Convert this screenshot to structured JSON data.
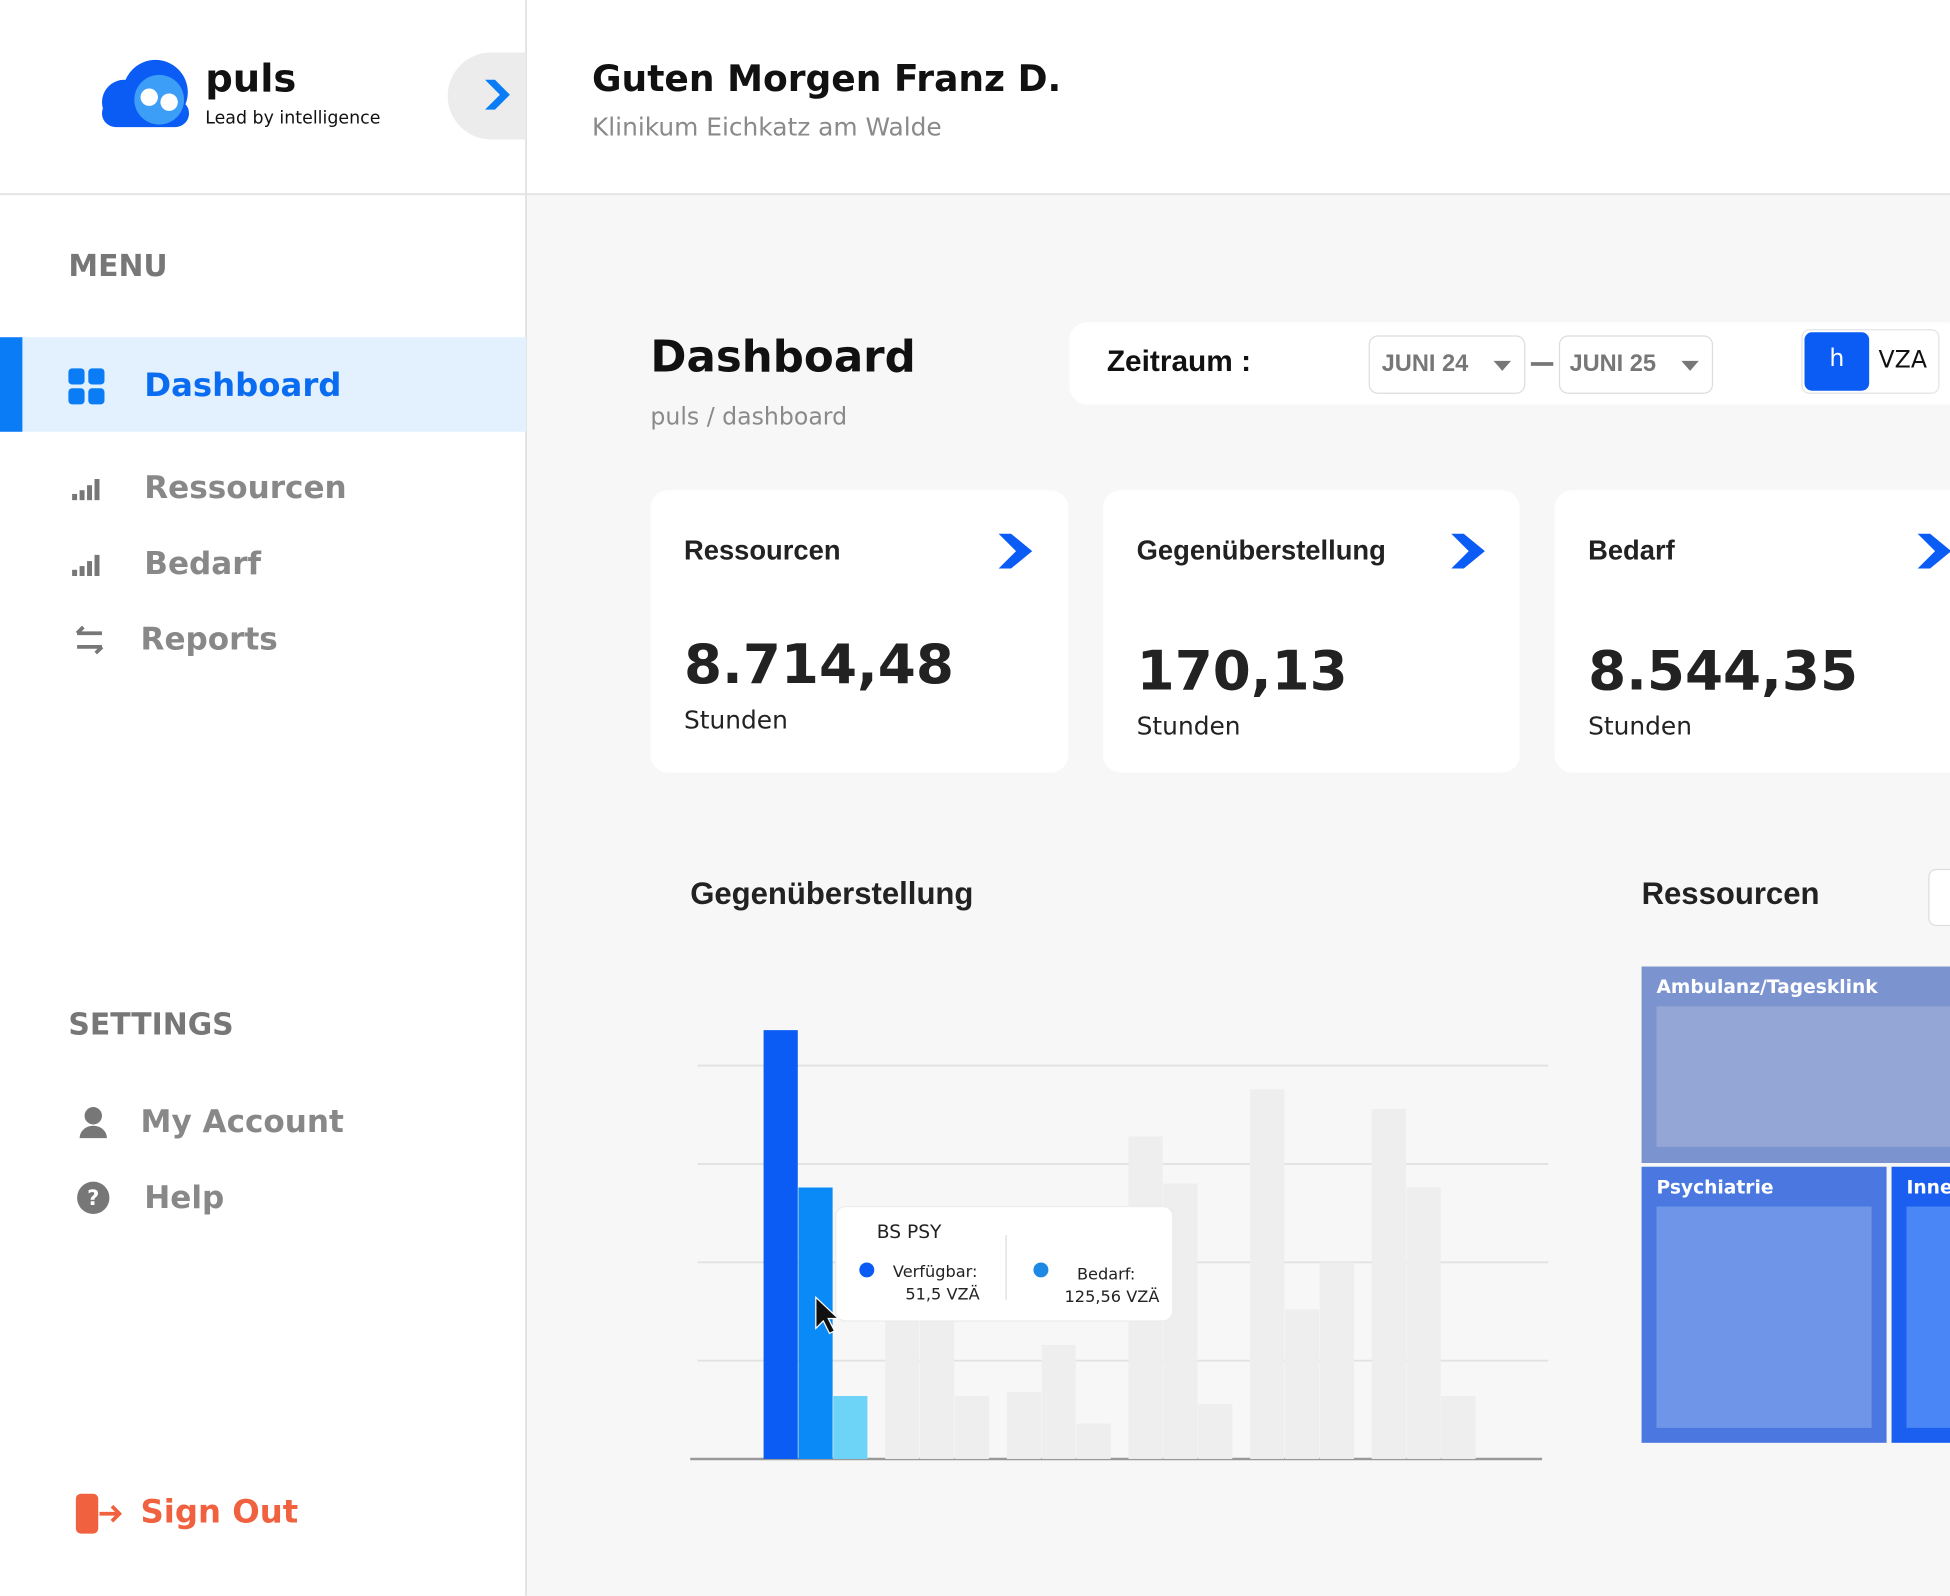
{
  "logo": {
    "name": "puls",
    "tagline": "Lead by intelligence"
  },
  "header": {
    "greeting": "Guten Morgen Franz D.",
    "subtitle": "Klinikum Eichkatz am Walde"
  },
  "sidebar": {
    "menu_title": "MENU",
    "menu": [
      "Dashboard",
      "Ressourcen",
      "Bedarf",
      "Reports"
    ],
    "settings_title": "SETTINGS",
    "settings": [
      "My Account",
      "Help"
    ],
    "sign_out": "Sign Out"
  },
  "page": {
    "title": "Dashboard",
    "breadcrumb": "puls / dashboard"
  },
  "period": {
    "label": "Zeitraum :",
    "from": "JUNI 24",
    "to": "JUNI 25",
    "units": [
      "h",
      "VZA"
    ]
  },
  "cards": [
    {
      "title": "Ressourcen",
      "value": "8.714,48",
      "unit": "Stunden"
    },
    {
      "title": "Gegenüberstellung",
      "value": "170,13",
      "unit": "Stunden"
    },
    {
      "title": "Bedarf",
      "value": "8.544,35",
      "unit": "Stunden"
    }
  ],
  "chart_data": {
    "type": "bar",
    "title": "Gegenüberstellung",
    "values": [
      109,
      69,
      16,
      36,
      35,
      16,
      17,
      29,
      9,
      82,
      70,
      14,
      94,
      38,
      50,
      89,
      69,
      16
    ],
    "colors": [
      "#0a5cf5",
      "#0a8af7",
      "#6dd3f7",
      "#eeeeee",
      "#eeeeee",
      "#eeeeee",
      "#eeeeee",
      "#eeeeee",
      "#eeeeee",
      "#eeeeee",
      "#eeeeee",
      "#eeeeee",
      "#eeeeee",
      "#eeeeee",
      "#eeeeee",
      "#eeeeee",
      "#eeeeee",
      "#eeeeee"
    ],
    "ylim": [
      0,
      110
    ],
    "yticks": [
      0,
      25,
      50,
      75,
      100
    ],
    "grid": true
  },
  "tooltip": {
    "title": "BS PSY",
    "items": [
      {
        "label": "Verfügbar:",
        "value": "51,5 VZÄ"
      },
      {
        "label": "Bedarf:",
        "value": "125,56 VZÄ"
      }
    ]
  },
  "treemap": {
    "title": "Ressourcen",
    "labels": [
      "Ambulanz/Tagesklink",
      "Psychiatrie",
      "Inne"
    ]
  }
}
